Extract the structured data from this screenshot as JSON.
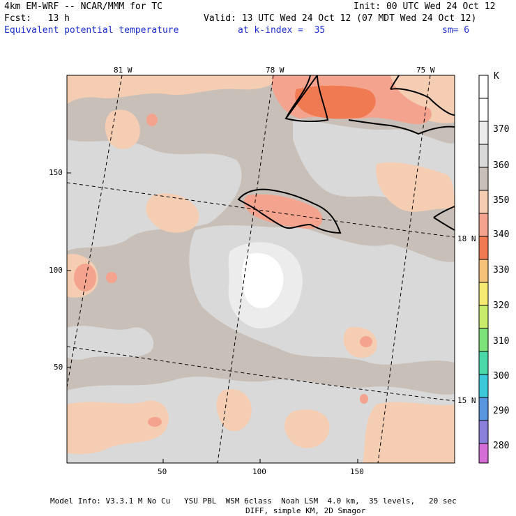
{
  "header": {
    "model_title": "4km EM-WRF -- NCAR/MMM for TC",
    "init": "Init: 00 UTC Wed 24 Oct 12",
    "forecast": "Fcst:   13 h",
    "valid": "Valid: 13 UTC Wed 24 Oct 12 (07 MDT Wed 24 Oct 12)",
    "field": "Equivalent potential temperature",
    "level": "at k-index =  35",
    "smoothing": "sm= 6"
  },
  "map": {
    "longitude_labels": [
      "81 W",
      "78 W",
      "75 W"
    ],
    "latitude_labels": [
      "18 N",
      "15 N"
    ],
    "x_ticks": [
      "50",
      "100",
      "150"
    ],
    "y_ticks": [
      "150",
      "100",
      "50"
    ]
  },
  "legend": {
    "unit": "K",
    "levels": [
      "370",
      "360",
      "350",
      "340",
      "330",
      "320",
      "310",
      "300",
      "290",
      "280"
    ],
    "colors": [
      "#ffffff",
      "#ececec",
      "#d9d9d9",
      "#c8c0b8",
      "#f4cdb2",
      "#f4a48e",
      "#f07a52",
      "#f6c27a",
      "#f6ea72",
      "#c8ec6a",
      "#7ee27a",
      "#4ad8a8",
      "#3cc8d8",
      "#5a96e0",
      "#8a80dc",
      "#a47ad0",
      "#d46ed6"
    ]
  },
  "footer": {
    "line1": "Model Info: V3.3.1 M No Cu   YSU PBL  WSM 6class  Noah LSM  4.0 km,  35 levels,   20 sec",
    "line2": "DIFF, simple KM, 2D Smagor"
  }
}
